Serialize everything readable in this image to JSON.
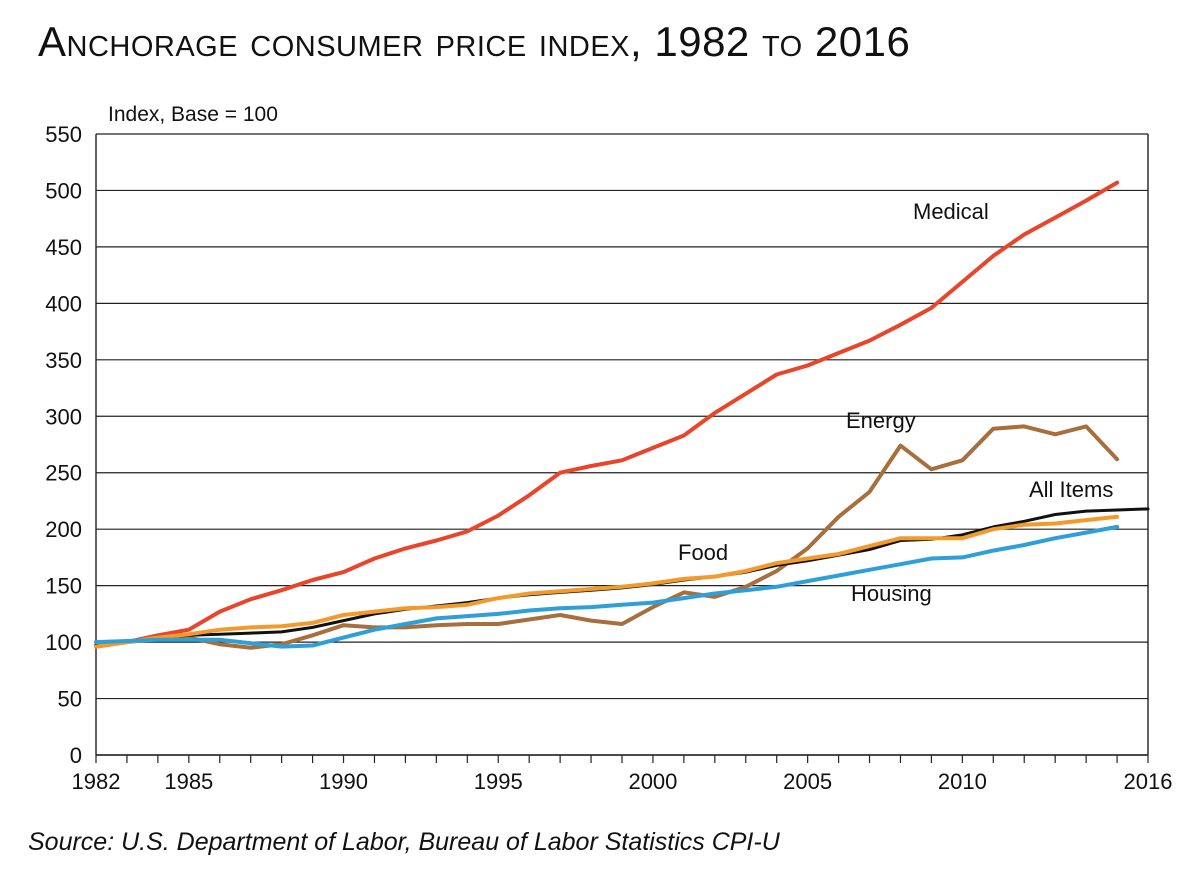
{
  "title": "Anchorage consumer price index, 1982 to 2016",
  "source": "Source: U.S. Department of Labor, Bureau of Labor Statistics CPI-U",
  "chart_data": {
    "type": "line",
    "title": "Anchorage consumer price index, 1982 to 2016",
    "ylabel": "Index, Base = 100",
    "xlabel": "",
    "xlim": [
      1982,
      2016
    ],
    "ylim": [
      0,
      550
    ],
    "xticks": [
      1982,
      1985,
      1990,
      1995,
      2000,
      2005,
      2010,
      2016
    ],
    "yticks": [
      0,
      50,
      100,
      150,
      200,
      250,
      300,
      350,
      400,
      450,
      500,
      550
    ],
    "grid": "horizontal",
    "legend": "inline labels",
    "series": [
      {
        "name": "Medical",
        "color": "#e8452a",
        "x": [
          1982,
          1983,
          1984,
          1985,
          1986,
          1987,
          1988,
          1989,
          1990,
          1991,
          1992,
          1993,
          1994,
          1995,
          1996,
          1997,
          1998,
          1999,
          2000,
          2001,
          2002,
          2003,
          2004,
          2005,
          2006,
          2007,
          2008,
          2009,
          2010,
          2011,
          2012,
          2013,
          2014,
          2015
        ],
        "y": [
          96,
          100,
          106,
          111,
          127,
          138,
          146,
          155,
          162,
          174,
          183,
          190,
          198,
          212,
          230,
          250,
          256,
          261,
          272,
          283,
          303,
          320,
          337,
          345,
          356,
          367,
          381,
          396,
          419,
          442,
          461,
          476,
          491,
          507
        ]
      },
      {
        "name": "Energy",
        "color": "#a86f3e",
        "x": [
          1982,
          1983,
          1984,
          1985,
          1986,
          1987,
          1988,
          1989,
          1990,
          1991,
          1992,
          1993,
          1994,
          1995,
          1996,
          1997,
          1998,
          1999,
          2000,
          2001,
          2002,
          2003,
          2004,
          2005,
          2006,
          2007,
          2008,
          2009,
          2010,
          2011,
          2012,
          2013,
          2014,
          2015
        ],
        "y": [
          97,
          100,
          103,
          104,
          98,
          95,
          98,
          106,
          115,
          113,
          113,
          115,
          116,
          116,
          120,
          124,
          119,
          116,
          131,
          144,
          140,
          149,
          163,
          183,
          211,
          233,
          274,
          253,
          261,
          289,
          291,
          284,
          291,
          262
        ]
      },
      {
        "name": "All Items",
        "color": "#111111",
        "x": [
          1982,
          1983,
          1984,
          1985,
          1986,
          1987,
          1988,
          1989,
          1990,
          1991,
          1992,
          1993,
          1994,
          1995,
          1996,
          1997,
          1998,
          1999,
          2000,
          2001,
          2002,
          2003,
          2004,
          2005,
          2006,
          2007,
          2008,
          2009,
          2010,
          2011,
          2012,
          2013,
          2014,
          2015,
          2016
        ],
        "y": [
          97,
          100,
          104,
          106,
          107,
          108,
          109,
          113,
          119,
          125,
          129,
          132,
          135,
          139,
          142,
          144,
          146,
          148,
          151,
          155,
          158,
          162,
          168,
          172,
          177,
          182,
          190,
          191,
          195,
          202,
          207,
          213,
          216,
          217,
          218
        ]
      },
      {
        "name": "Food",
        "color": "#f39a2d",
        "x": [
          1982,
          1983,
          1984,
          1985,
          1986,
          1987,
          1988,
          1989,
          1990,
          1991,
          1992,
          1993,
          1994,
          1995,
          1996,
          1997,
          1998,
          1999,
          2000,
          2001,
          2002,
          2003,
          2004,
          2005,
          2006,
          2007,
          2008,
          2009,
          2010,
          2011,
          2012,
          2013,
          2014,
          2015
        ],
        "y": [
          96,
          100,
          104,
          107,
          111,
          113,
          114,
          117,
          124,
          127,
          130,
          131,
          133,
          139,
          143,
          145,
          147,
          149,
          152,
          156,
          158,
          163,
          170,
          174,
          178,
          185,
          192,
          192,
          192,
          200,
          204,
          205,
          208,
          211
        ]
      },
      {
        "name": "Housing",
        "color": "#2f9fd8",
        "x": [
          1982,
          1983,
          1984,
          1985,
          1986,
          1987,
          1988,
          1989,
          1990,
          1991,
          1992,
          1993,
          1994,
          1995,
          1996,
          1997,
          1998,
          1999,
          2000,
          2001,
          2002,
          2003,
          2004,
          2005,
          2006,
          2007,
          2008,
          2009,
          2010,
          2011,
          2012,
          2013,
          2014,
          2015
        ],
        "y": [
          100,
          101,
          102,
          102,
          102,
          99,
          96,
          97,
          104,
          111,
          116,
          121,
          123,
          125,
          128,
          130,
          131,
          133,
          135,
          139,
          143,
          146,
          149,
          154,
          159,
          164,
          169,
          174,
          175,
          181,
          186,
          192,
          197,
          202
        ]
      }
    ]
  }
}
